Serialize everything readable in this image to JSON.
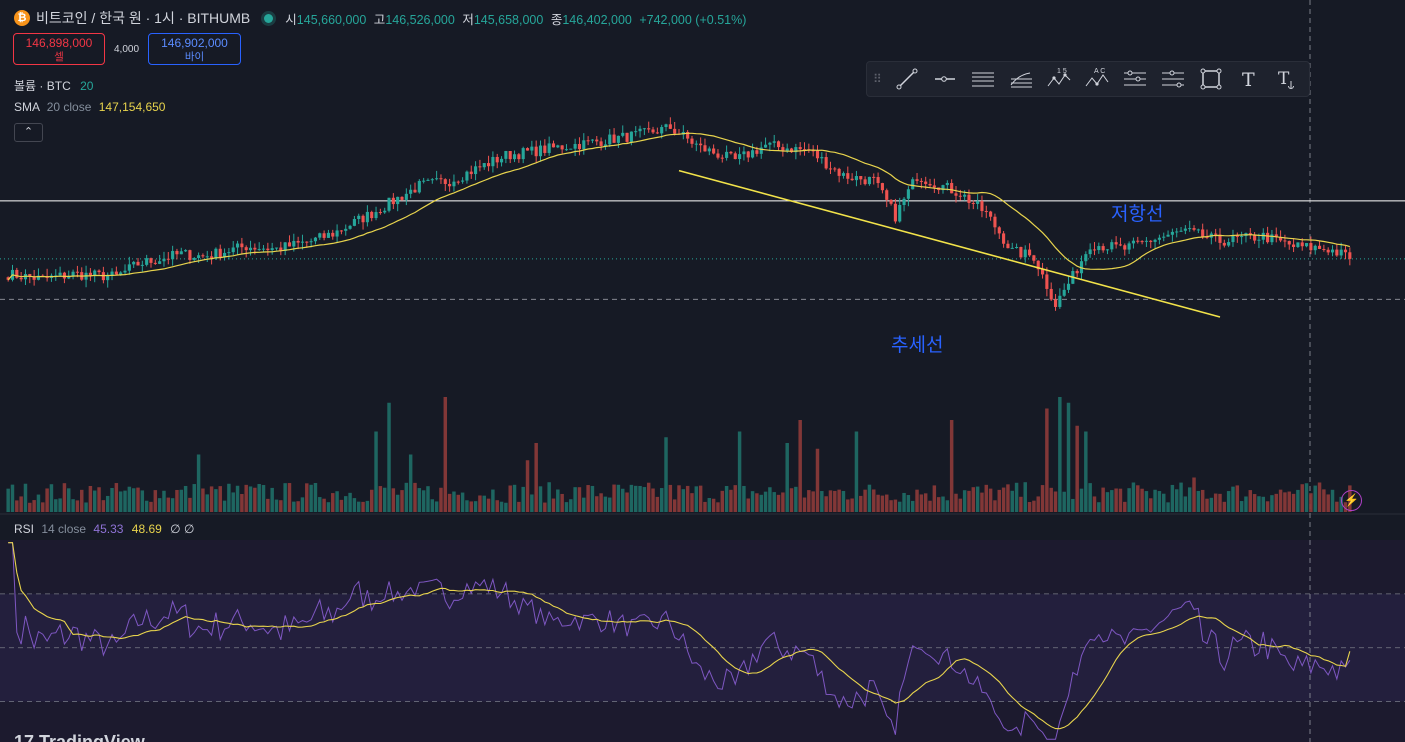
{
  "header": {
    "coin_icon_label": "₿",
    "symbol": "비트코인 / 한국 원 · 1시 · BITHUMB",
    "ohlc": [
      {
        "label": "시",
        "value": "145,660,000"
      },
      {
        "label": "고",
        "value": "146,526,000"
      },
      {
        "label": "저",
        "value": "145,658,000"
      },
      {
        "label": "종",
        "value": "146,402,000"
      },
      {
        "label": "",
        "value": "+742,000 (+0.51%)"
      }
    ]
  },
  "trade": {
    "sell_price": "146,898,000",
    "sell_label": "셀",
    "spread": "4,000",
    "buy_price": "146,902,000",
    "buy_label": "바이"
  },
  "indicators": {
    "volume": {
      "name": "볼륨 · BTC",
      "param": "20"
    },
    "sma": {
      "name": "SMA",
      "params": "20 close",
      "value": "147,154,650"
    },
    "rsi": {
      "name": "RSI",
      "params": "14 close",
      "value1": "45.33",
      "value2": "48.69",
      "extra": "∅ ∅"
    }
  },
  "collapse_glyph": "⌃",
  "drawing_tools": [
    "trend-line-icon",
    "horizontal-ray-icon",
    "parallel-channel-icon",
    "fib-retracement-icon",
    "xabcd-pattern-icon",
    "abcd-pattern-icon",
    "gann-box-icon",
    "fib-channel-icon",
    "rectangle-icon",
    "text-icon",
    "anchored-text-icon"
  ],
  "tool_labels": {
    "pattern1": "1 5",
    "pattern2": "A C",
    "text": "T"
  },
  "annotations": {
    "resistance": "저항선",
    "trend": "추세선"
  },
  "bolt_glyph": "⚡",
  "logo": "17 TradingView",
  "colors": {
    "up": "#26a69a",
    "down": "#ef5350",
    "sma": "#e8d44d",
    "rsi": "#7e57c2",
    "rsi_ma": "#e8d44d",
    "annotation": "#2962ff",
    "trend_line": "#f2e34a"
  },
  "chart_data": {
    "type": "candlestick",
    "symbol": "비트코인 / 한국 원",
    "interval": "1시",
    "price_range": [
      142000000,
      152500000
    ],
    "sma_period": 20,
    "resistance_price": 148700000,
    "current_price": 146402000,
    "support_dashed_price": 144800000,
    "trend_line": {
      "from": {
        "candle": 155,
        "price": 149900000
      },
      "to": {
        "candle": 280,
        "price": 144100000
      }
    },
    "price_anchors": [
      [
        0,
        145800000
      ],
      [
        8,
        145600000
      ],
      [
        15,
        145800000
      ],
      [
        25,
        145700000
      ],
      [
        30,
        146200000
      ],
      [
        40,
        146600000
      ],
      [
        45,
        146500000
      ],
      [
        55,
        146900000
      ],
      [
        62,
        146800000
      ],
      [
        70,
        147100000
      ],
      [
        75,
        147400000
      ],
      [
        85,
        148300000
      ],
      [
        95,
        149300000
      ],
      [
        102,
        149500000
      ],
      [
        115,
        150500000
      ],
      [
        130,
        150900000
      ],
      [
        145,
        151300000
      ],
      [
        153,
        151600000
      ],
      [
        160,
        150800000
      ],
      [
        168,
        150300000
      ],
      [
        175,
        150900000
      ],
      [
        185,
        150700000
      ],
      [
        193,
        149700000
      ],
      [
        200,
        149500000
      ],
      [
        205,
        148100000
      ],
      [
        210,
        149700000
      ],
      [
        220,
        149000000
      ],
      [
        226,
        148200000
      ],
      [
        232,
        146700000
      ],
      [
        237,
        146500000
      ],
      [
        242,
        144600000
      ],
      [
        246,
        145700000
      ],
      [
        250,
        147000000
      ],
      [
        258,
        146800000
      ],
      [
        265,
        147200000
      ],
      [
        272,
        147500000
      ],
      [
        280,
        147100000
      ],
      [
        290,
        147300000
      ],
      [
        297,
        146900000
      ],
      [
        305,
        146800000
      ],
      [
        310,
        146450000
      ]
    ],
    "volume_spikes": [
      [
        88,
        0.95
      ],
      [
        101,
        1.0
      ],
      [
        85,
        0.7
      ],
      [
        93,
        0.5
      ],
      [
        44,
        0.5
      ],
      [
        218,
        0.8
      ],
      [
        183,
        0.8
      ],
      [
        180,
        0.6
      ],
      [
        187,
        0.55
      ],
      [
        196,
        0.7
      ],
      [
        240,
        0.9
      ],
      [
        243,
        1.0
      ],
      [
        245,
        0.95
      ],
      [
        247,
        0.75
      ],
      [
        249,
        0.7
      ],
      [
        152,
        0.65
      ],
      [
        169,
        0.7
      ],
      [
        122,
        0.6
      ],
      [
        120,
        0.45
      ],
      [
        274,
        0.3
      ]
    ],
    "rsi_range": [
      15,
      90
    ],
    "rsi_levels": [
      70,
      50,
      30
    ],
    "rsi_last": 45.33,
    "rsi_ma_last": 48.69
  }
}
